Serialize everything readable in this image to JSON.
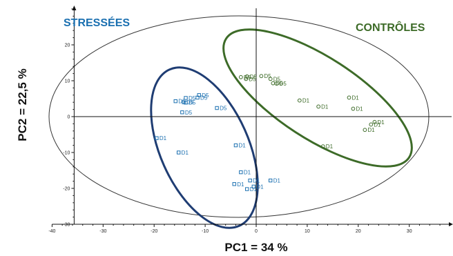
{
  "chart_data": {
    "type": "scatter",
    "xlabel": "PC1 = 34 %",
    "ylabel": "PC2 = 22,5 %",
    "xlim": [
      -40,
      40
    ],
    "ylim": [
      -30,
      30
    ],
    "x_ticks": [
      -40,
      -30,
      -20,
      -10,
      0,
      10,
      20,
      30
    ],
    "y_ticks": [
      -30,
      -20,
      -10,
      0,
      10,
      20
    ],
    "grid": false,
    "groups": [
      {
        "name": "STRESSÉES",
        "color": "#1a6fb0",
        "marker": "square",
        "ellipse_color": "#1f3d73"
      },
      {
        "name": "CONTRÔLES",
        "color": "#3d6b28",
        "marker": "circle",
        "ellipse_color": "#3d6b28"
      }
    ],
    "series": [
      {
        "group": "STRESSÉES",
        "points": [
          {
            "x": -11.2,
            "y": 6.0,
            "label": "D5"
          },
          {
            "x": -11.5,
            "y": 5.3,
            "label": "D5"
          },
          {
            "x": -13.8,
            "y": 5.2,
            "label": "D5"
          },
          {
            "x": -15.8,
            "y": 4.3,
            "label": "D5"
          },
          {
            "x": -14.2,
            "y": 4.0,
            "label": "D5"
          },
          {
            "x": -13.8,
            "y": 3.9,
            "label": "D5"
          },
          {
            "x": -7.7,
            "y": 2.4,
            "label": "D5"
          },
          {
            "x": -14.5,
            "y": 1.2,
            "label": "D5"
          },
          {
            "x": -19.5,
            "y": -6.0,
            "label": "D1"
          },
          {
            "x": -15.2,
            "y": -10.0,
            "label": "D1"
          },
          {
            "x": -4.0,
            "y": -8.0,
            "label": "D1"
          },
          {
            "x": -3.0,
            "y": -15.5,
            "label": "D1"
          },
          {
            "x": 2.8,
            "y": -17.8,
            "label": "D1"
          },
          {
            "x": -1.2,
            "y": -17.8,
            "label": "D1"
          },
          {
            "x": -4.3,
            "y": -18.8,
            "label": "D1"
          },
          {
            "x": -0.5,
            "y": -19.5,
            "label": "D1"
          },
          {
            "x": -1.8,
            "y": -20.2,
            "label": "D1"
          }
        ]
      },
      {
        "group": "CONTRÔLES",
        "points": [
          {
            "x": -3.0,
            "y": 11.0,
            "label": "D5"
          },
          {
            "x": -1.8,
            "y": 11.2,
            "label": "D5"
          },
          {
            "x": -2.0,
            "y": 10.5,
            "label": "D5"
          },
          {
            "x": 1.0,
            "y": 11.3,
            "label": "D5"
          },
          {
            "x": 2.8,
            "y": 10.5,
            "label": "D5"
          },
          {
            "x": 3.3,
            "y": 9.3,
            "label": "D5"
          },
          {
            "x": 4.0,
            "y": 9.2,
            "label": "D5"
          },
          {
            "x": 8.5,
            "y": 4.5,
            "label": "D1"
          },
          {
            "x": 18.2,
            "y": 5.3,
            "label": "D1"
          },
          {
            "x": 12.2,
            "y": 2.8,
            "label": "D1"
          },
          {
            "x": 19.0,
            "y": 2.2,
            "label": "D1"
          },
          {
            "x": 23.2,
            "y": -1.5,
            "label": "D1"
          },
          {
            "x": 22.5,
            "y": -2.2,
            "label": "D1"
          },
          {
            "x": 21.3,
            "y": -3.7,
            "label": "D1"
          },
          {
            "x": 13.1,
            "y": -8.3,
            "label": "D1"
          }
        ]
      }
    ]
  }
}
